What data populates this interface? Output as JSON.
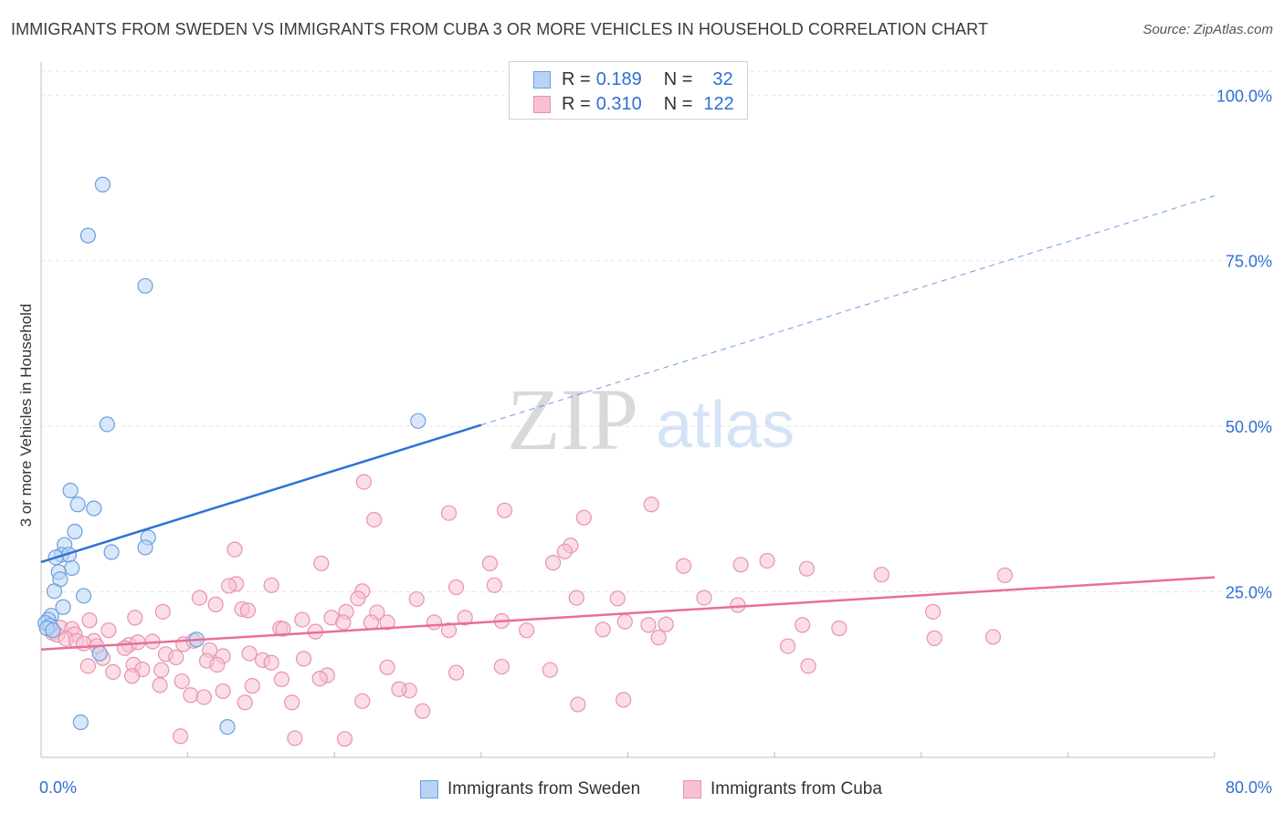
{
  "title": "IMMIGRANTS FROM SWEDEN VS IMMIGRANTS FROM CUBA 3 OR MORE VEHICLES IN HOUSEHOLD CORRELATION CHART",
  "source": "Source: ZipAtlas.com",
  "watermark": {
    "zip": "ZIP",
    "atlas": "atlas"
  },
  "colors": {
    "sweden_fill": "#b8d3f5",
    "sweden_stroke": "#6b9fdc",
    "sweden_line": "#2f72d6",
    "cuba_fill": "#f7c1d1",
    "cuba_stroke": "#e893ad",
    "cuba_line": "#e86f98",
    "value_text": "#2f6fd1",
    "grid": "#e3e3e3"
  },
  "legend": {
    "rows": [
      {
        "r_label": "R =",
        "r_value": "0.189",
        "n_label": "N =",
        "n_value": "32"
      },
      {
        "r_label": "R =",
        "r_value": "0.310",
        "n_label": "N =",
        "n_value": "122"
      }
    ]
  },
  "chart_data": {
    "type": "scatter",
    "ylabel": "3 or more Vehicles in Household",
    "x_tick_labels": [
      "0.0%",
      "80.0%"
    ],
    "y_tick_labels": [
      "25.0%",
      "50.0%",
      "75.0%",
      "100.0%"
    ],
    "xlim": [
      0,
      80
    ],
    "ylim": [
      0,
      105
    ],
    "grid": true,
    "series": [
      {
        "name": "Immigrants from Sweden",
        "trend": {
          "x0": 0,
          "y0": 29.5,
          "x1": 30,
          "y1": 50.2,
          "dash_to_x": 80,
          "dash_to_y": 84.8
        },
        "points": [
          [
            4.2,
            86.5
          ],
          [
            3.2,
            78.8
          ],
          [
            7.1,
            71.2
          ],
          [
            4.5,
            50.3
          ],
          [
            25.7,
            50.8
          ],
          [
            2.0,
            40.3
          ],
          [
            2.5,
            38.2
          ],
          [
            3.6,
            37.6
          ],
          [
            2.3,
            34.1
          ],
          [
            7.3,
            33.2
          ],
          [
            1.6,
            32.1
          ],
          [
            7.1,
            31.7
          ],
          [
            4.8,
            31.0
          ],
          [
            1.4,
            30.6
          ],
          [
            1.9,
            30.6
          ],
          [
            1.0,
            30.2
          ],
          [
            2.1,
            28.6
          ],
          [
            1.2,
            28.0
          ],
          [
            1.3,
            26.9
          ],
          [
            0.9,
            25.1
          ],
          [
            2.9,
            24.4
          ],
          [
            1.5,
            22.7
          ],
          [
            0.7,
            21.4
          ],
          [
            0.5,
            20.8
          ],
          [
            0.3,
            20.3
          ],
          [
            0.6,
            19.9
          ],
          [
            0.4,
            19.5
          ],
          [
            0.8,
            19.2
          ],
          [
            10.6,
            17.8
          ],
          [
            4.0,
            15.7
          ],
          [
            2.7,
            5.3
          ],
          [
            12.7,
            4.6
          ]
        ]
      },
      {
        "name": "Immigrants from Cuba",
        "trend": {
          "x0": 0,
          "y0": 16.3,
          "x1": 80,
          "y1": 27.2
        },
        "points": [
          [
            22.0,
            41.6
          ],
          [
            41.6,
            38.2
          ],
          [
            31.6,
            37.3
          ],
          [
            27.8,
            36.9
          ],
          [
            37.0,
            36.2
          ],
          [
            22.7,
            35.9
          ],
          [
            36.1,
            32.0
          ],
          [
            13.2,
            31.4
          ],
          [
            35.7,
            31.1
          ],
          [
            19.1,
            29.3
          ],
          [
            30.6,
            29.3
          ],
          [
            34.9,
            29.4
          ],
          [
            49.5,
            29.7
          ],
          [
            47.7,
            29.1
          ],
          [
            43.8,
            28.9
          ],
          [
            52.2,
            28.5
          ],
          [
            57.3,
            27.6
          ],
          [
            65.7,
            27.5
          ],
          [
            13.3,
            26.2
          ],
          [
            15.7,
            26.0
          ],
          [
            30.9,
            26.0
          ],
          [
            12.8,
            25.9
          ],
          [
            28.3,
            25.7
          ],
          [
            21.9,
            25.1
          ],
          [
            36.5,
            24.1
          ],
          [
            45.2,
            24.1
          ],
          [
            39.3,
            24.0
          ],
          [
            21.6,
            24.0
          ],
          [
            25.6,
            23.9
          ],
          [
            10.8,
            24.1
          ],
          [
            11.9,
            23.1
          ],
          [
            13.7,
            22.4
          ],
          [
            14.1,
            22.2
          ],
          [
            20.8,
            22.0
          ],
          [
            22.9,
            21.9
          ],
          [
            28.9,
            21.1
          ],
          [
            22.5,
            20.4
          ],
          [
            8.3,
            22.0
          ],
          [
            6.4,
            21.1
          ],
          [
            19.8,
            21.1
          ],
          [
            17.8,
            20.8
          ],
          [
            20.6,
            20.4
          ],
          [
            23.6,
            20.4
          ],
          [
            26.8,
            20.4
          ],
          [
            31.4,
            20.6
          ],
          [
            47.5,
            23.0
          ],
          [
            60.8,
            22.0
          ],
          [
            39.8,
            20.5
          ],
          [
            41.4,
            20.0
          ],
          [
            42.6,
            20.1
          ],
          [
            51.9,
            20.0
          ],
          [
            54.4,
            19.5
          ],
          [
            38.3,
            19.3
          ],
          [
            33.1,
            19.2
          ],
          [
            27.8,
            19.2
          ],
          [
            16.3,
            19.5
          ],
          [
            16.5,
            19.4
          ],
          [
            18.7,
            19.0
          ],
          [
            3.3,
            20.7
          ],
          [
            4.6,
            19.2
          ],
          [
            1.3,
            19.6
          ],
          [
            0.8,
            18.8
          ],
          [
            1.1,
            18.5
          ],
          [
            2.1,
            19.4
          ],
          [
            2.3,
            18.6
          ],
          [
            3.6,
            17.6
          ],
          [
            6.0,
            17.0
          ],
          [
            6.6,
            17.4
          ],
          [
            7.6,
            17.5
          ],
          [
            1.7,
            17.9
          ],
          [
            2.4,
            17.6
          ],
          [
            2.9,
            17.2
          ],
          [
            3.8,
            16.8
          ],
          [
            5.7,
            16.5
          ],
          [
            9.7,
            17.1
          ],
          [
            10.4,
            17.6
          ],
          [
            11.5,
            16.2
          ],
          [
            12.4,
            15.3
          ],
          [
            14.2,
            15.7
          ],
          [
            15.1,
            14.7
          ],
          [
            15.7,
            14.3
          ],
          [
            17.9,
            14.9
          ],
          [
            8.5,
            15.6
          ],
          [
            9.2,
            15.1
          ],
          [
            4.2,
            15.0
          ],
          [
            6.3,
            14.0
          ],
          [
            6.9,
            13.3
          ],
          [
            3.2,
            13.8
          ],
          [
            4.9,
            12.9
          ],
          [
            8.2,
            13.2
          ],
          [
            11.3,
            14.6
          ],
          [
            12.0,
            14.0
          ],
          [
            19.5,
            12.4
          ],
          [
            23.6,
            13.6
          ],
          [
            28.3,
            12.8
          ],
          [
            31.4,
            13.7
          ],
          [
            34.7,
            13.2
          ],
          [
            42.1,
            18.1
          ],
          [
            50.9,
            16.8
          ],
          [
            52.3,
            13.8
          ],
          [
            60.9,
            18.0
          ],
          [
            64.9,
            18.2
          ],
          [
            6.2,
            12.3
          ],
          [
            9.6,
            11.5
          ],
          [
            8.1,
            10.9
          ],
          [
            16.4,
            11.8
          ],
          [
            19.0,
            11.9
          ],
          [
            14.4,
            10.8
          ],
          [
            12.4,
            10.0
          ],
          [
            25.1,
            10.1
          ],
          [
            10.2,
            9.4
          ],
          [
            11.1,
            9.1
          ],
          [
            24.4,
            10.3
          ],
          [
            36.6,
            8.0
          ],
          [
            39.7,
            8.7
          ],
          [
            13.9,
            8.3
          ],
          [
            17.1,
            8.3
          ],
          [
            21.9,
            8.5
          ],
          [
            26.0,
            7.0
          ],
          [
            9.5,
            3.2
          ],
          [
            20.7,
            2.8
          ],
          [
            17.3,
            2.9
          ]
        ]
      }
    ]
  }
}
